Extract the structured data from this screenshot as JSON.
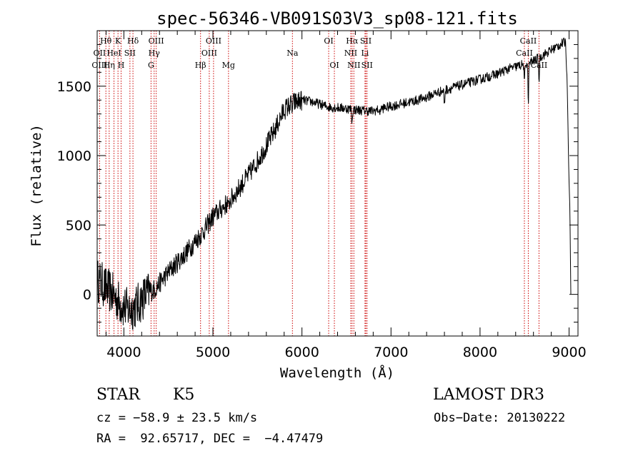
{
  "chart_data": {
    "type": "line",
    "title": "spec-56346-VB091S03V3_sp08-121.fits",
    "xlabel": "Wavelength (Å)",
    "ylabel": "Flux (relative)",
    "xlim": [
      3700,
      9100
    ],
    "ylim": [
      -300,
      1900
    ],
    "xticks": [
      4000,
      5000,
      6000,
      7000,
      8000,
      9000
    ],
    "yticks": [
      0,
      500,
      1000,
      1500
    ],
    "xtick_labels": [
      "4000",
      "5000",
      "6000",
      "7000",
      "8000",
      "9000"
    ],
    "ytick_labels": [
      "0",
      "500",
      "1000",
      "1500"
    ],
    "continuum": [
      [
        3700,
        100
      ],
      [
        3750,
        80
      ],
      [
        3800,
        40
      ],
      [
        3850,
        20
      ],
      [
        3900,
        -20
      ],
      [
        3950,
        -60
      ],
      [
        4000,
        -90
      ],
      [
        4050,
        -110
      ],
      [
        4100,
        -100
      ],
      [
        4150,
        -80
      ],
      [
        4200,
        -40
      ],
      [
        4250,
        0
      ],
      [
        4300,
        20
      ],
      [
        4350,
        40
      ],
      [
        4400,
        80
      ],
      [
        4500,
        160
      ],
      [
        4600,
        230
      ],
      [
        4700,
        300
      ],
      [
        4800,
        380
      ],
      [
        4900,
        460
      ],
      [
        5000,
        560
      ],
      [
        5100,
        620
      ],
      [
        5200,
        680
      ],
      [
        5300,
        770
      ],
      [
        5400,
        860
      ],
      [
        5500,
        960
      ],
      [
        5600,
        1070
      ],
      [
        5700,
        1190
      ],
      [
        5800,
        1330
      ],
      [
        5900,
        1380
      ],
      [
        6000,
        1400
      ],
      [
        6100,
        1390
      ],
      [
        6200,
        1370
      ],
      [
        6300,
        1350
      ],
      [
        6400,
        1345
      ],
      [
        6500,
        1340
      ],
      [
        6600,
        1330
      ],
      [
        6700,
        1325
      ],
      [
        6800,
        1320
      ],
      [
        6900,
        1340
      ],
      [
        7000,
        1355
      ],
      [
        7100,
        1370
      ],
      [
        7200,
        1385
      ],
      [
        7300,
        1400
      ],
      [
        7400,
        1420
      ],
      [
        7500,
        1450
      ],
      [
        7600,
        1470
      ],
      [
        7700,
        1490
      ],
      [
        7800,
        1510
      ],
      [
        7900,
        1530
      ],
      [
        8000,
        1550
      ],
      [
        8100,
        1570
      ],
      [
        8200,
        1590
      ],
      [
        8300,
        1620
      ],
      [
        8400,
        1640
      ],
      [
        8500,
        1660
      ],
      [
        8600,
        1680
      ],
      [
        8700,
        1720
      ],
      [
        8800,
        1760
      ],
      [
        8900,
        1800
      ],
      [
        8960,
        1820
      ],
      [
        8980,
        1500
      ],
      [
        9000,
        800
      ],
      [
        9010,
        600
      ],
      [
        9020,
        0
      ]
    ],
    "absorption_features": [
      {
        "wavelength": 5175,
        "depth": 60
      },
      {
        "wavelength": 5890,
        "depth": 40
      },
      {
        "wavelength": 6563,
        "depth": 100
      },
      {
        "wavelength": 6870,
        "depth": 40
      },
      {
        "wavelength": 7600,
        "depth": 110
      },
      {
        "wavelength": 8498,
        "depth": 150
      },
      {
        "wavelength": 8542,
        "depth": 290
      },
      {
        "wavelength": 8662,
        "depth": 170
      }
    ],
    "lines": [
      {
        "label": "Hθ",
        "wavelength": 3798,
        "row": 1
      },
      {
        "label": "OII",
        "wavelength": 3727,
        "row": 2
      },
      {
        "label": "OIII",
        "wavelength": 3727,
        "row": 3
      },
      {
        "label": "HeI",
        "wavelength": 3889,
        "row": 2
      },
      {
        "label": "Hη",
        "wavelength": 3835,
        "row": 3
      },
      {
        "label": "K",
        "wavelength": 3934,
        "row": 1
      },
      {
        "label": "SII",
        "wavelength": 4068,
        "row": 2
      },
      {
        "label": "H",
        "wavelength": 3969,
        "row": 3
      },
      {
        "label": "Hδ",
        "wavelength": 4102,
        "row": 1
      },
      {
        "label": "OIII",
        "wavelength": 4363,
        "row": 1
      },
      {
        "label": "Hγ",
        "wavelength": 4340,
        "row": 2
      },
      {
        "label": "G",
        "wavelength": 4305,
        "row": 3
      },
      {
        "label": "Hβ",
        "wavelength": 4861,
        "row": 3
      },
      {
        "label": "OIII",
        "wavelength": 5007,
        "row": 1
      },
      {
        "label": "OIII",
        "wavelength": 4959,
        "row": 2
      },
      {
        "label": "Mg",
        "wavelength": 5175,
        "row": 3
      },
      {
        "label": "Na",
        "wavelength": 5893,
        "row": 2
      },
      {
        "label": "OI",
        "wavelength": 6300,
        "row": 1
      },
      {
        "label": "OI",
        "wavelength": 6364,
        "row": 3
      },
      {
        "label": "Hα",
        "wavelength": 6563,
        "row": 1
      },
      {
        "label": "NII",
        "wavelength": 6548,
        "row": 2
      },
      {
        "label": "NII",
        "wavelength": 6583,
        "row": 3
      },
      {
        "label": "SII",
        "wavelength": 6717,
        "row": 1
      },
      {
        "label": "Li",
        "wavelength": 6708,
        "row": 2
      },
      {
        "label": "SII",
        "wavelength": 6731,
        "row": 3
      },
      {
        "label": "CaII",
        "wavelength": 8542,
        "row": 1
      },
      {
        "label": "CaII",
        "wavelength": 8498,
        "row": 2
      },
      {
        "label": "CaII",
        "wavelength": 8662,
        "row": 3
      }
    ],
    "colors": {
      "spectrum": "#000000",
      "lines": "#cc0000",
      "axes": "#000000"
    }
  },
  "info": {
    "object_class": "STAR",
    "subclass": "K5",
    "survey": "LAMOST DR3",
    "cz": "cz = −58.9 ± 23.5 km/s",
    "obs_date": "Obs−Date: 20130222",
    "coords": "RA =  92.65717, DEC =  −4.47479"
  }
}
